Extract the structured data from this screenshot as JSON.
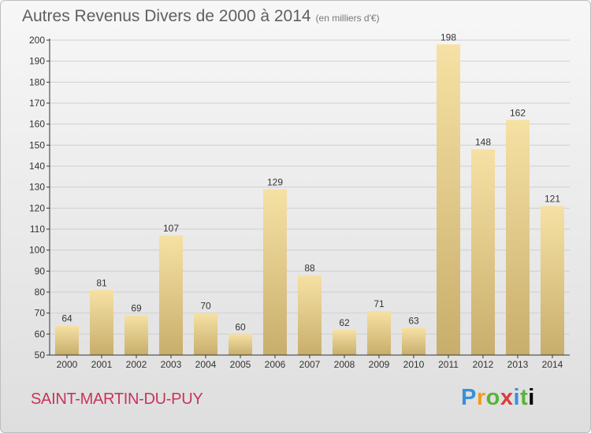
{
  "header": {
    "title": "Autres Revenus Divers de 2000 à 2014",
    "unit": "(en milliers d'€)"
  },
  "footer": {
    "city": "SAINT-MARTIN-DU-PUY",
    "brand": [
      "P",
      "r",
      "o",
      "x",
      "i",
      "t",
      "i"
    ]
  },
  "colors": {
    "bar_light": "#f6e1a4",
    "bar_dark": "#c8ae6c",
    "axis": "#333333",
    "grid": "#cfcfcf",
    "city": "#c8345c"
  },
  "chart_data": {
    "type": "bar",
    "title": "Autres Revenus Divers de 2000 à 2014",
    "subtitle": "(en milliers d'€)",
    "categories": [
      "2000",
      "2001",
      "2002",
      "2003",
      "2004",
      "2005",
      "2006",
      "2007",
      "2008",
      "2009",
      "2010",
      "2011",
      "2012",
      "2013",
      "2014"
    ],
    "values": [
      64,
      81,
      69,
      107,
      70,
      60,
      129,
      88,
      62,
      71,
      63,
      198,
      148,
      162,
      121
    ],
    "ylim": [
      50,
      200
    ],
    "yticks": [
      50,
      60,
      70,
      80,
      90,
      100,
      110,
      120,
      130,
      140,
      150,
      160,
      170,
      180,
      190,
      200
    ],
    "grid": true
  }
}
